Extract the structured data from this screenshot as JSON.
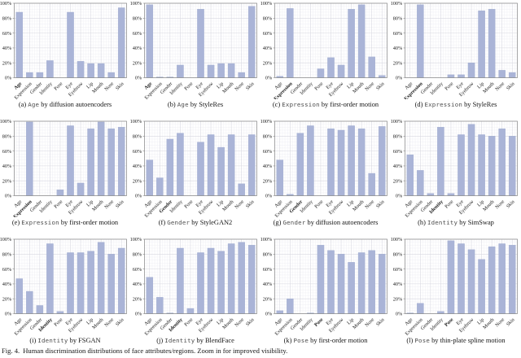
{
  "figure": {
    "caption_prefix": "Fig. 4.",
    "caption_text": "Human discrimination distributions of face attributes/regions. Zoom in for improved visibility."
  },
  "colors": {
    "bar": "#aab4d7",
    "bar_edge": "#9fabce",
    "grid_major": "#d7d7e0",
    "grid_minor": "#eeeef4",
    "axis": "#858585",
    "tick_text": "#1a1a1a",
    "caption_attr": "#4d4d4d"
  },
  "chart_data": {
    "type": "bar",
    "categories": [
      "Age",
      "Expression",
      "Gender",
      "Identity",
      "Pose",
      "Eye",
      "Eyebrow",
      "Lip",
      "Mouth",
      "Nose",
      "Skin"
    ],
    "ylim": [
      0,
      100
    ],
    "y_tick_labels": [
      "0%",
      "20%",
      "40%",
      "60%",
      "80%",
      "100%"
    ],
    "grid": true,
    "legend": false,
    "caption_connector": "by",
    "charts": [
      {
        "label": "(a)",
        "attribute": "Age",
        "method": "diffusion autoencoders",
        "values": [
          88,
          7,
          7,
          23,
          0,
          88,
          22,
          19,
          19,
          7,
          94
        ]
      },
      {
        "label": "(b)",
        "attribute": "Age",
        "method": "StyleRes",
        "values": [
          98,
          1,
          1,
          17,
          0,
          92,
          17,
          19,
          19,
          7,
          96
        ]
      },
      {
        "label": "(c)",
        "attribute": "Expression",
        "method": "first-order motion",
        "values": [
          2,
          93,
          0,
          0,
          12,
          27,
          17,
          92,
          98,
          28,
          3
        ]
      },
      {
        "label": "(d)",
        "attribute": "Expression",
        "method": "StyleRes",
        "values": [
          0,
          98,
          0,
          0,
          4,
          4,
          20,
          90,
          92,
          10,
          7
        ]
      },
      {
        "label": "(e)",
        "attribute": "Expression",
        "method": "first-order motion",
        "values": [
          0,
          99,
          0,
          0,
          8,
          94,
          17,
          90,
          99,
          90,
          92
        ]
      },
      {
        "label": "(f)",
        "attribute": "Gender",
        "method": "StyleGAN2",
        "values": [
          48,
          24,
          76,
          84,
          0,
          72,
          82,
          65,
          82,
          16,
          82
        ]
      },
      {
        "label": "(g)",
        "attribute": "Gender",
        "method": "diffusion autoencoders",
        "values": [
          48,
          2,
          84,
          94,
          0,
          90,
          88,
          94,
          90,
          30,
          93
        ]
      },
      {
        "label": "(h)",
        "attribute": "Identity",
        "method": "SimSwap",
        "values": [
          55,
          34,
          3,
          92,
          3,
          82,
          96,
          82,
          80,
          90,
          80
        ]
      },
      {
        "label": "(i)",
        "attribute": "Identity",
        "method": "FSGAN",
        "values": [
          47,
          30,
          11,
          94,
          3,
          82,
          82,
          84,
          96,
          80,
          88
        ]
      },
      {
        "label": "(j)",
        "attribute": "Identity",
        "method": "BlendFace",
        "values": [
          49,
          22,
          1,
          88,
          7,
          82,
          88,
          84,
          94,
          96,
          92
        ]
      },
      {
        "label": "(k)",
        "attribute": "Pose",
        "method": "first-order motion",
        "values": [
          4,
          20,
          0,
          1,
          92,
          85,
          80,
          69,
          82,
          85,
          80
        ]
      },
      {
        "label": "(l)",
        "attribute": "Pose",
        "method": "thin-plate spline motion",
        "values": [
          1,
          14,
          0,
          3,
          98,
          94,
          86,
          73,
          90,
          94,
          92
        ]
      }
    ]
  }
}
